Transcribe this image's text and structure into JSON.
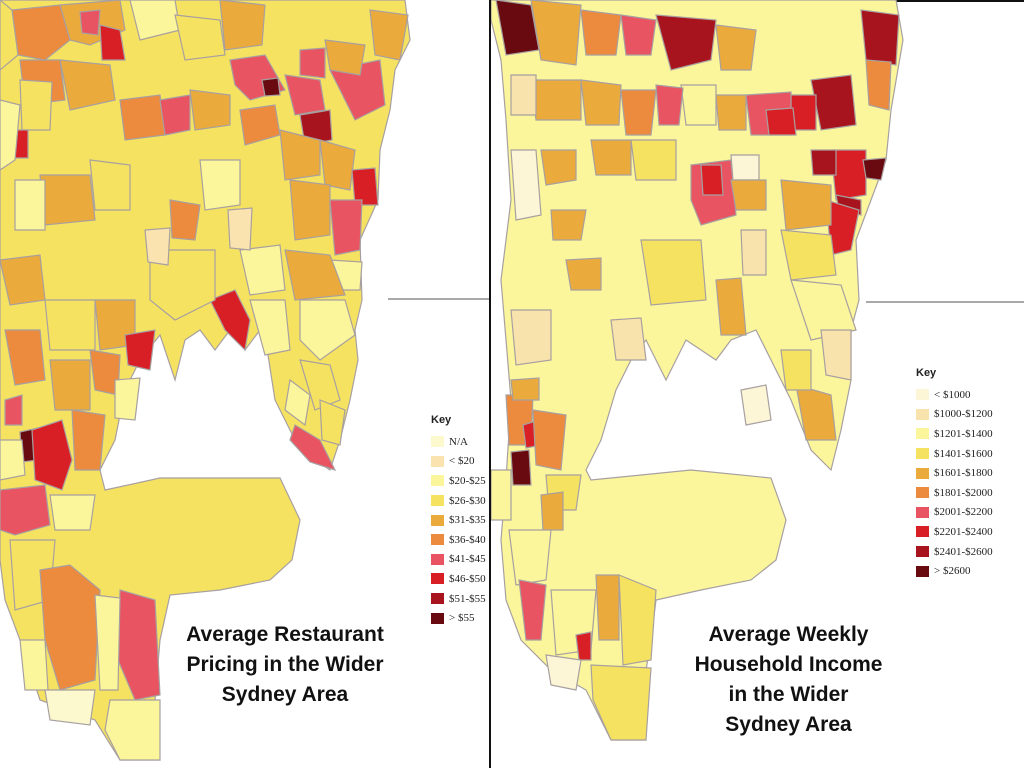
{
  "left_map": {
    "title_lines": [
      "Average Restaurant",
      "Pricing in the Wider",
      "Sydney Area"
    ],
    "legend": {
      "title": "Key",
      "items": [
        {
          "label": "N/A",
          "color": "#fdf9cf"
        },
        {
          "label": "< $20",
          "color": "#fbe3b0"
        },
        {
          "label": "$20-$25",
          "color": "#fbf69c"
        },
        {
          "label": "$26-$30",
          "color": "#f6e261"
        },
        {
          "label": "$31-$35",
          "color": "#eaaa3c"
        },
        {
          "label": "$36-$40",
          "color": "#ec8a3e"
        },
        {
          "label": "$41-$45",
          "color": "#e85462"
        },
        {
          "label": "$46-$50",
          "color": "#d91f26"
        },
        {
          "label": "$51-$55",
          "color": "#a8141d"
        },
        {
          "label": "> $55",
          "color": "#680a10"
        }
      ]
    }
  },
  "right_map": {
    "title_lines": [
      "Average Weekly",
      "Household Income",
      "in the Wider",
      "Sydney Area"
    ],
    "legend": {
      "title": "Key",
      "items": [
        {
          "label": "< $1000",
          "color": "#fcf5d6"
        },
        {
          "label": "$1000-$1200",
          "color": "#f9e3ac"
        },
        {
          "label": "$1201-$1400",
          "color": "#fbf69c"
        },
        {
          "label": "$1401-$1600",
          "color": "#f6e261"
        },
        {
          "label": "$1601-$1800",
          "color": "#eaaa3c"
        },
        {
          "label": "$1801-$2000",
          "color": "#ec8a3e"
        },
        {
          "label": "$2001-$2200",
          "color": "#e85462"
        },
        {
          "label": "$2201-$2400",
          "color": "#d91f26"
        },
        {
          "label": "$2401-$2600",
          "color": "#a8141d"
        },
        {
          "label": "> $2600",
          "color": "#680a10"
        }
      ]
    }
  },
  "colors": {
    "map_border": "#a8a0a0",
    "divider": "#111111",
    "harbour_line": "#a9a9a9"
  }
}
